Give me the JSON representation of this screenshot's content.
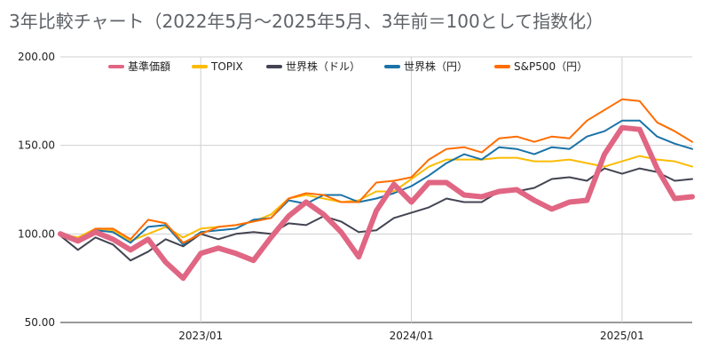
{
  "chart_data": {
    "type": "line",
    "title": "3年比較チャート（2022年5月～2025年5月、3年前＝100として指数化）",
    "xlabel": "",
    "ylabel": "",
    "x": [
      "2022/05",
      "2022/06",
      "2022/07",
      "2022/08",
      "2022/09",
      "2022/10",
      "2022/11",
      "2022/12",
      "2023/01",
      "2023/02",
      "2023/03",
      "2023/04",
      "2023/05",
      "2023/06",
      "2023/07",
      "2023/08",
      "2023/09",
      "2023/10",
      "2023/11",
      "2023/12",
      "2024/01",
      "2024/02",
      "2024/03",
      "2024/04",
      "2024/05",
      "2024/06",
      "2024/07",
      "2024/08",
      "2024/09",
      "2024/10",
      "2024/11",
      "2024/12",
      "2025/01",
      "2025/02",
      "2025/03",
      "2025/04",
      "2025/05"
    ],
    "x_tick_labels": [
      {
        "x": "2023/01",
        "label": "2023/01"
      },
      {
        "x": "2024/01",
        "label": "2024/01"
      },
      {
        "x": "2025/01",
        "label": "2025/01"
      }
    ],
    "y_ticks": [
      "50.00",
      "100.00",
      "150.00",
      "200.00"
    ],
    "ylim": [
      50,
      200
    ],
    "grid": true,
    "legend_position": "top",
    "series": [
      {
        "name": "基準価額",
        "color": "#e06683",
        "values": [
          100,
          96,
          101,
          97,
          91,
          97,
          84,
          75,
          89,
          92,
          89,
          85,
          98,
          110,
          118,
          111,
          101,
          87,
          113,
          128,
          118,
          129,
          129,
          122,
          121,
          124,
          125,
          119,
          114,
          118,
          119,
          145,
          160,
          159,
          137,
          120,
          121
        ]
      },
      {
        "name": "TOPIX",
        "color": "#fbbc04",
        "values": [
          100,
          98,
          103,
          102,
          96,
          100,
          104,
          98,
          103,
          104,
          105,
          107,
          111,
          120,
          122,
          120,
          118,
          119,
          124,
          124,
          131,
          138,
          142,
          142,
          142,
          143,
          143,
          141,
          141,
          142,
          140,
          138,
          141,
          144,
          142,
          141,
          138
        ]
      },
      {
        "name": "世界株（ドル）",
        "color": "#434452",
        "values": [
          99,
          91,
          98,
          94,
          85,
          90,
          97,
          93,
          100,
          97,
          100,
          101,
          100,
          106,
          105,
          110,
          107,
          101,
          102,
          109,
          112,
          115,
          120,
          118,
          118,
          124,
          124,
          126,
          131,
          132,
          130,
          137,
          134,
          137,
          135,
          130,
          131
        ]
      },
      {
        "name": "世界株（円）",
        "color": "#1a73a8",
        "values": [
          101,
          97,
          102,
          101,
          95,
          104,
          105,
          94,
          101,
          102,
          103,
          108,
          109,
          119,
          117,
          122,
          122,
          118,
          120,
          123,
          127,
          133,
          140,
          145,
          142,
          149,
          148,
          145,
          149,
          148,
          155,
          158,
          164,
          164,
          155,
          151,
          148
        ]
      },
      {
        "name": "S&P500（円）",
        "color": "#ff6d01",
        "values": [
          101,
          96,
          103,
          103,
          97,
          108,
          106,
          95,
          100,
          104,
          105,
          107,
          109,
          120,
          123,
          122,
          118,
          118,
          129,
          130,
          132,
          142,
          148,
          149,
          146,
          154,
          155,
          152,
          155,
          154,
          164,
          170,
          176,
          175,
          163,
          158,
          152
        ]
      }
    ]
  }
}
